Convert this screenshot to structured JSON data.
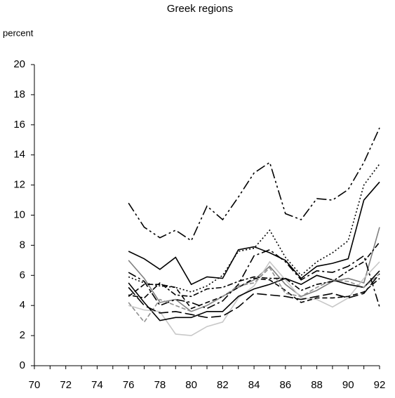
{
  "chart_data": {
    "type": "line",
    "title": "Greek regions",
    "y_label": "percent",
    "x": [
      76,
      77,
      78,
      79,
      80,
      81,
      82,
      83,
      84,
      85,
      86,
      87,
      88,
      89,
      90,
      91,
      92
    ],
    "xlim": [
      70,
      92
    ],
    "xticks": [
      70,
      72,
      74,
      76,
      78,
      80,
      82,
      84,
      86,
      88,
      90,
      92
    ],
    "ylim": [
      0,
      20
    ],
    "yticks": [
      0,
      2,
      4,
      6,
      8,
      10,
      12,
      14,
      16,
      18,
      20
    ],
    "series": [
      {
        "color": "#000000",
        "dash": "14 4 3 4 3 4",
        "values": [
          10.8,
          9.2,
          8.5,
          9.0,
          8.3,
          10.6,
          9.7,
          11.2,
          12.8,
          13.5,
          10.1,
          9.7,
          11.1,
          11.0,
          11.7,
          13.5,
          15.8
        ]
      },
      {
        "color": "#000000",
        "dash": "",
        "values": [
          7.6,
          7.1,
          6.4,
          7.2,
          5.4,
          5.9,
          5.8,
          7.7,
          7.9,
          7.5,
          7.0,
          5.8,
          6.6,
          6.8,
          7.1,
          11.0,
          12.2
        ]
      },
      {
        "color": "#000000",
        "dash": "2 3",
        "values": [
          5.9,
          5.5,
          5.3,
          5.2,
          4.9,
          5.3,
          6.0,
          7.6,
          7.8,
          9.0,
          7.2,
          6.0,
          6.9,
          7.5,
          8.3,
          12.0,
          13.4
        ]
      },
      {
        "color": "#808080",
        "dash": "",
        "values": [
          7.0,
          5.8,
          4.2,
          4.4,
          3.6,
          4.0,
          4.6,
          5.2,
          5.7,
          6.6,
          5.4,
          4.6,
          5.0,
          5.6,
          5.8,
          5.5,
          9.2
        ]
      },
      {
        "color": "#c8c8c8",
        "dash": "",
        "values": [
          4.0,
          3.7,
          3.6,
          2.1,
          2.0,
          2.6,
          2.9,
          4.5,
          5.3,
          6.9,
          5.7,
          4.5,
          4.4,
          3.9,
          4.5,
          5.8,
          6.9
        ]
      },
      {
        "color": "#000000",
        "dash": "7 4",
        "values": [
          4.6,
          5.4,
          5.4,
          5.2,
          3.8,
          4.2,
          4.6,
          5.2,
          5.8,
          5.7,
          5.0,
          4.2,
          4.5,
          4.5,
          4.6,
          4.9,
          5.8
        ]
      },
      {
        "color": "#000000",
        "dash": "",
        "values": [
          5.5,
          4.2,
          3.0,
          3.2,
          3.2,
          3.6,
          3.6,
          4.6,
          5.1,
          5.4,
          5.8,
          5.4,
          6.0,
          5.7,
          5.4,
          5.2,
          6.3
        ]
      },
      {
        "color": "#000000",
        "dash": "12 4 3 4",
        "values": [
          6.2,
          5.6,
          4.0,
          4.4,
          4.2,
          3.8,
          4.3,
          5.4,
          7.3,
          7.7,
          6.9,
          5.7,
          6.3,
          6.2,
          6.6,
          7.3,
          3.9
        ]
      },
      {
        "color": "#909090",
        "dash": "6 3",
        "values": [
          4.2,
          2.9,
          4.4,
          4.0,
          3.6,
          4.0,
          4.6,
          5.3,
          5.5,
          6.5,
          4.8,
          4.6,
          5.2,
          5.7,
          5.6,
          5.2,
          6.1
        ]
      },
      {
        "color": "#000000",
        "dash": "14 5",
        "values": [
          5.2,
          4.0,
          3.5,
          3.6,
          3.4,
          3.2,
          3.3,
          3.9,
          4.8,
          4.7,
          4.6,
          4.4,
          4.6,
          4.8,
          4.5,
          4.8,
          6.1
        ]
      },
      {
        "color": "#000000",
        "dash": "3 3 8 3",
        "values": [
          4.7,
          4.5,
          5.5,
          4.7,
          4.6,
          5.1,
          5.2,
          5.6,
          5.9,
          5.8,
          5.8,
          5.0,
          5.4,
          5.6,
          6.3,
          6.9,
          8.2
        ]
      }
    ]
  }
}
